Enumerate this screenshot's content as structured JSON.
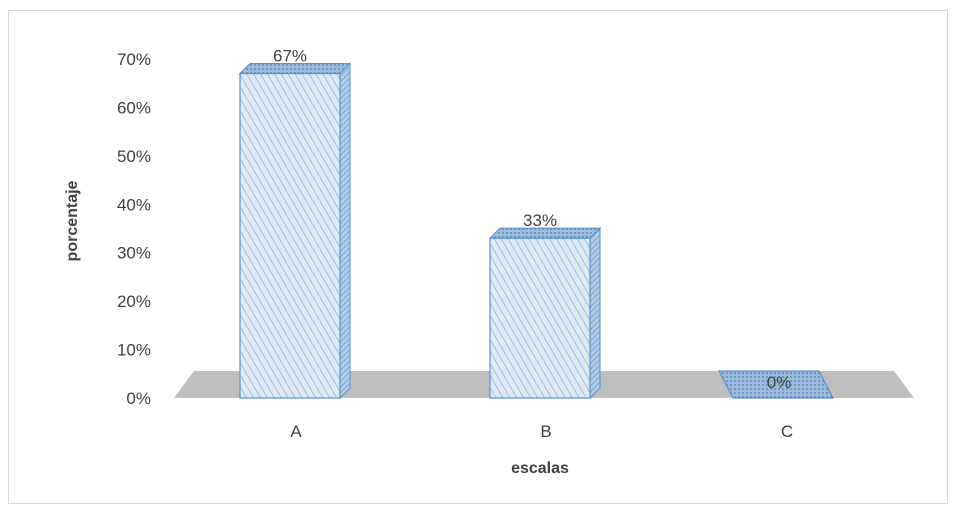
{
  "chart_data": {
    "type": "bar",
    "style": "3d-column",
    "categories": [
      "A",
      "B",
      "C"
    ],
    "values": [
      67,
      33,
      0
    ],
    "data_labels": [
      "67%",
      "33%",
      "0%"
    ],
    "xlabel": "escalas",
    "ylabel": "porcentaje",
    "ylim": [
      0,
      70
    ],
    "yticks": [
      "0%",
      "10%",
      "20%",
      "30%",
      "40%",
      "50%",
      "60%",
      "70%"
    ],
    "grid": false,
    "legend": "none",
    "colors": {
      "bar_fill": "#deebf7",
      "bar_hatch": "#7fa7d1",
      "bar_stroke": "#5b8fc9",
      "bar_top": "#9dbbdc",
      "bar_side": "#b3cde8",
      "floor": "#bfbfbf",
      "text": "#404040"
    }
  }
}
